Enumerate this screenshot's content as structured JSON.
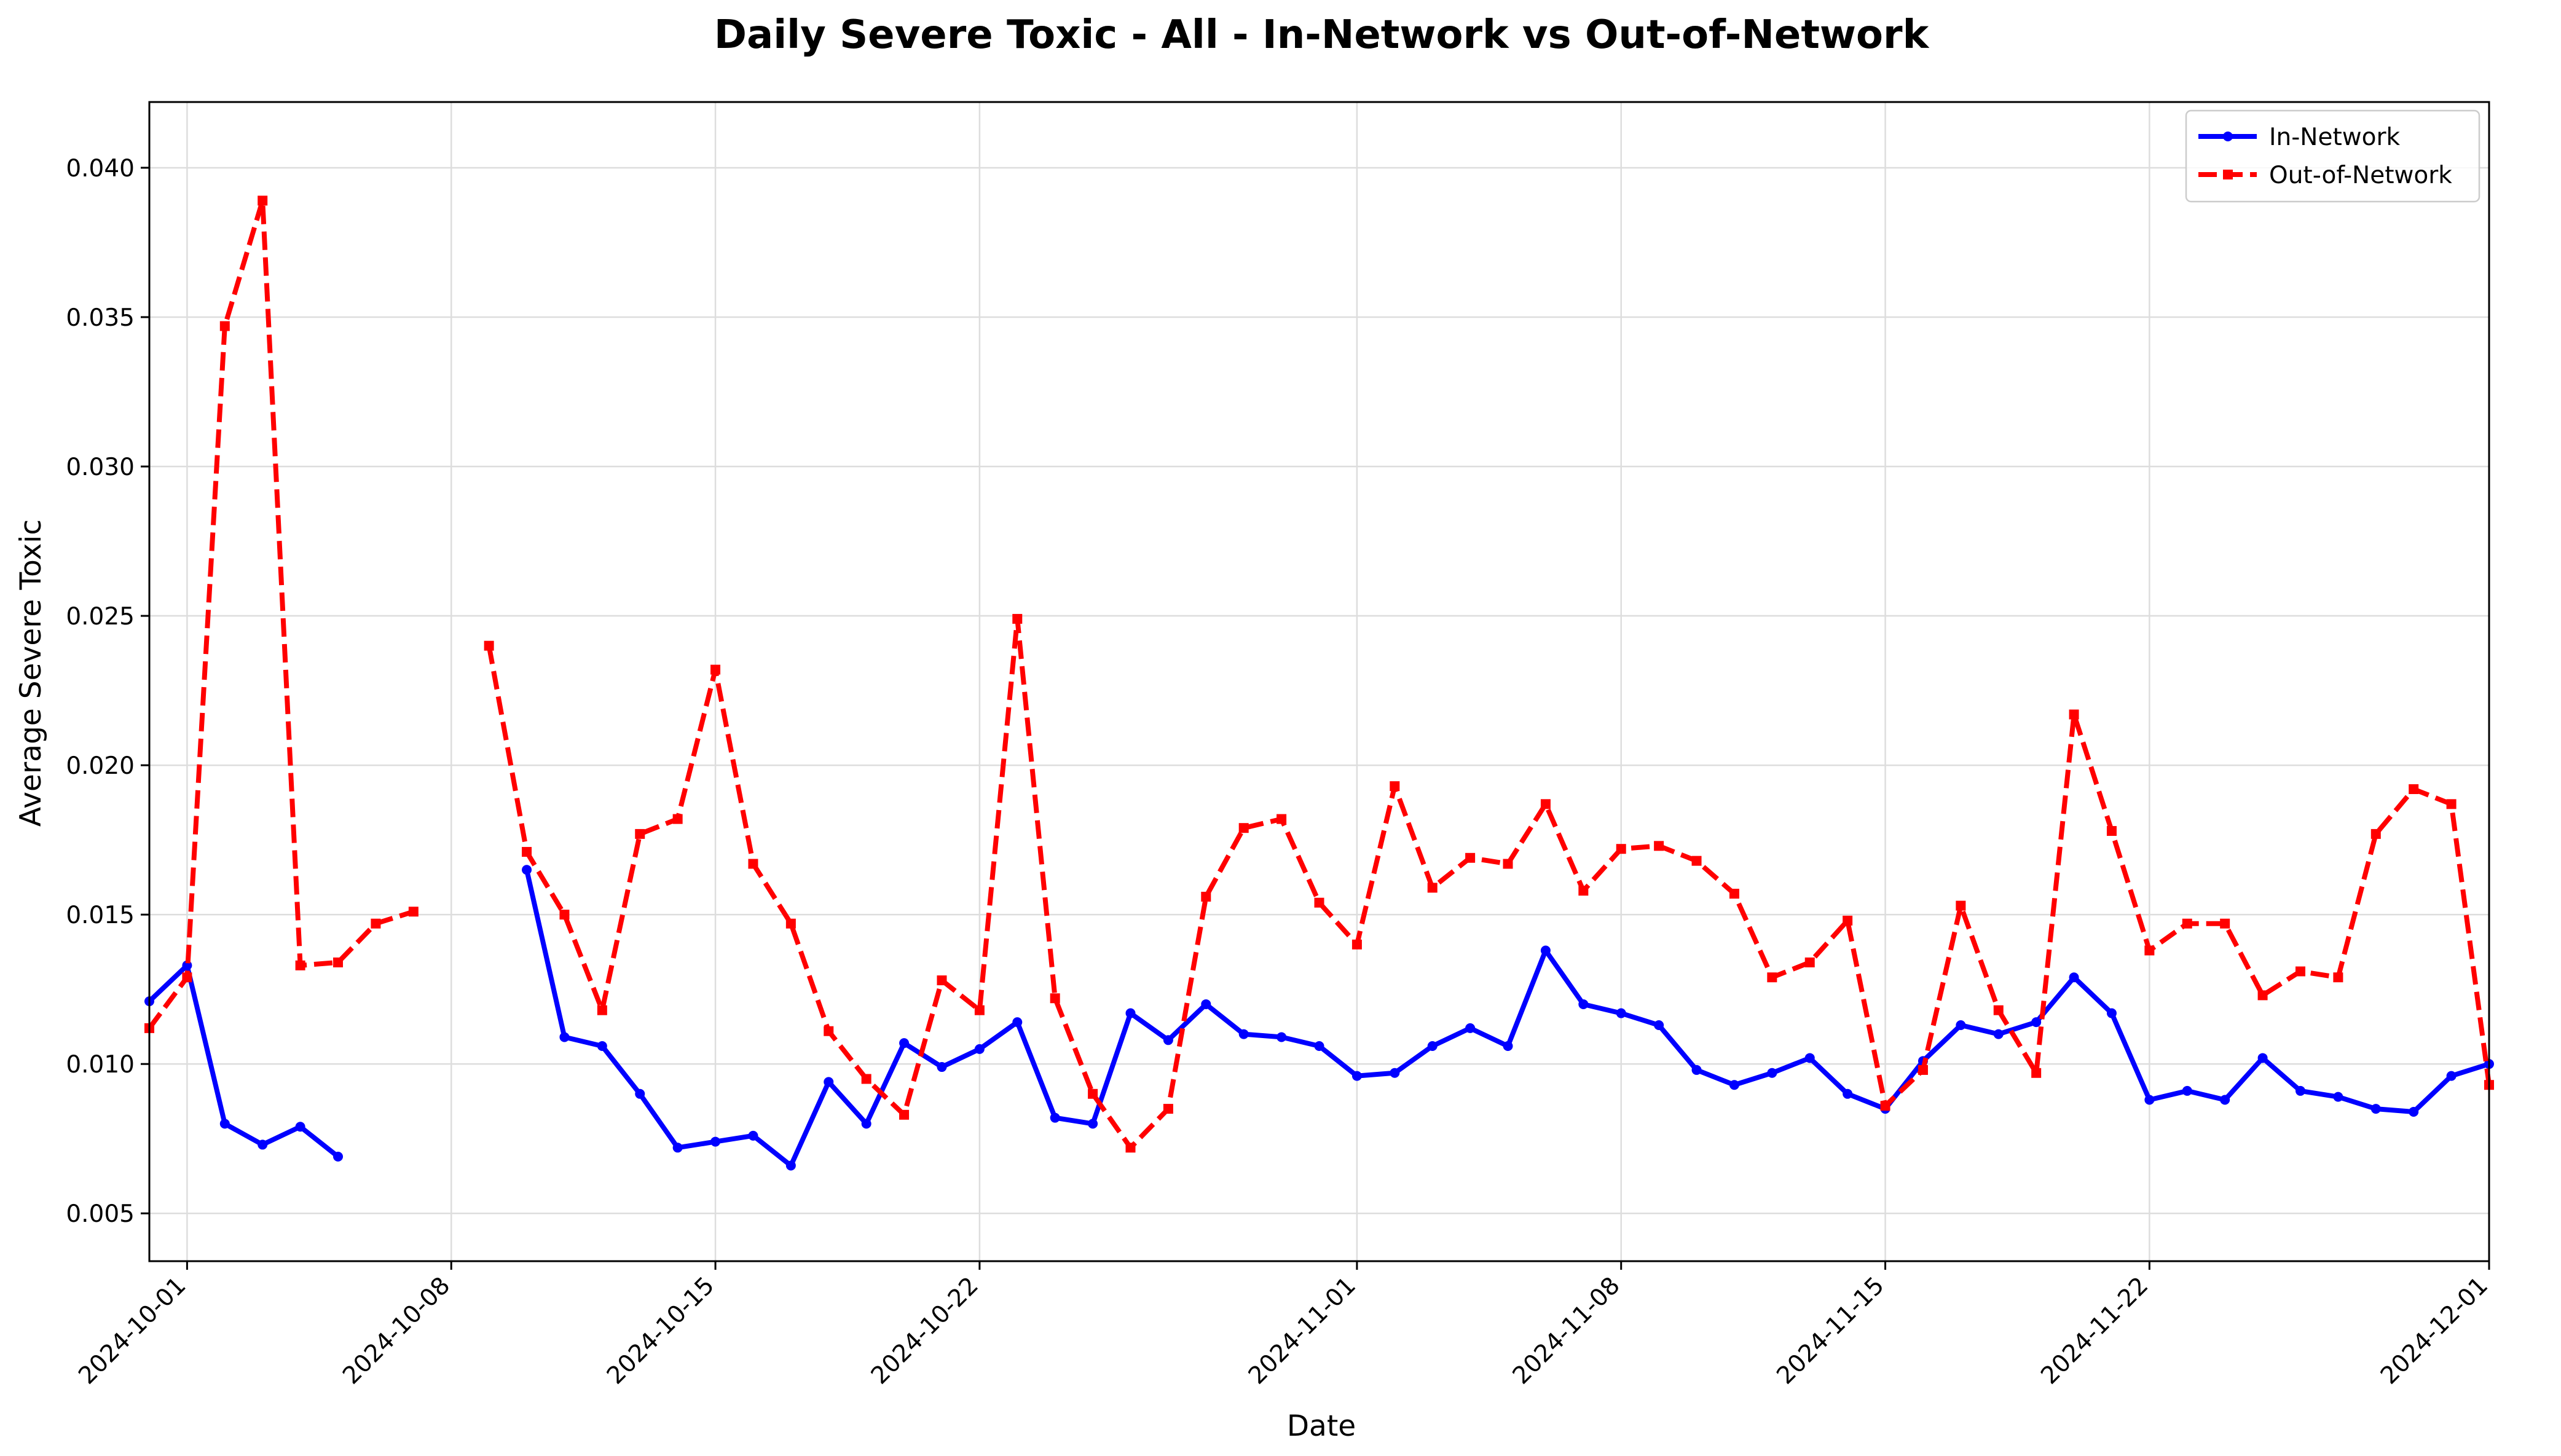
{
  "chart_data": {
    "type": "line",
    "title": "Daily Severe Toxic - All - In-Network vs Out-of-Network",
    "xlabel": "Date",
    "ylabel": "Average Severe Toxic",
    "x_range": [
      "2024-09-30",
      "2024-12-01"
    ],
    "ylim": [
      0.0034,
      0.0422
    ],
    "y_ticks": [
      0.005,
      0.01,
      0.015,
      0.02,
      0.025,
      0.03,
      0.035,
      0.04
    ],
    "y_tick_labels": [
      "0.005",
      "0.010",
      "0.015",
      "0.020",
      "0.025",
      "0.030",
      "0.035",
      "0.040"
    ],
    "x_ticks": [
      "2024-10-01",
      "2024-10-08",
      "2024-10-15",
      "2024-10-22",
      "2024-11-01",
      "2024-11-08",
      "2024-11-15",
      "2024-11-22",
      "2024-12-01"
    ],
    "grid": true,
    "legend_position": "top-right",
    "series": [
      {
        "name": "In-Network",
        "color": "#0000ff",
        "line_style": "solid",
        "marker": "circle",
        "points": [
          [
            "2024-09-30",
            0.0121
          ],
          [
            "2024-10-01",
            0.0133
          ],
          [
            "2024-10-02",
            0.008
          ],
          [
            "2024-10-03",
            0.0073
          ],
          [
            "2024-10-04",
            0.0079
          ],
          [
            "2024-10-05",
            0.0069
          ],
          [
            "2024-10-10",
            0.0165
          ],
          [
            "2024-10-11",
            0.0109
          ],
          [
            "2024-10-12",
            0.0106
          ],
          [
            "2024-10-13",
            0.009
          ],
          [
            "2024-10-14",
            0.0072
          ],
          [
            "2024-10-15",
            0.0074
          ],
          [
            "2024-10-16",
            0.0076
          ],
          [
            "2024-10-17",
            0.0066
          ],
          [
            "2024-10-18",
            0.0094
          ],
          [
            "2024-10-19",
            0.008
          ],
          [
            "2024-10-20",
            0.0107
          ],
          [
            "2024-10-21",
            0.0099
          ],
          [
            "2024-10-22",
            0.0105
          ],
          [
            "2024-10-23",
            0.0114
          ],
          [
            "2024-10-24",
            0.0082
          ],
          [
            "2024-10-25",
            0.008
          ],
          [
            "2024-10-26",
            0.0117
          ],
          [
            "2024-10-27",
            0.0108
          ],
          [
            "2024-10-28",
            0.012
          ],
          [
            "2024-10-29",
            0.011
          ],
          [
            "2024-10-30",
            0.0109
          ],
          [
            "2024-10-31",
            0.0106
          ],
          [
            "2024-11-01",
            0.0096
          ],
          [
            "2024-11-02",
            0.0097
          ],
          [
            "2024-11-03",
            0.0106
          ],
          [
            "2024-11-04",
            0.0112
          ],
          [
            "2024-11-05",
            0.0106
          ],
          [
            "2024-11-06",
            0.0138
          ],
          [
            "2024-11-07",
            0.012
          ],
          [
            "2024-11-08",
            0.0117
          ],
          [
            "2024-11-09",
            0.0113
          ],
          [
            "2024-11-10",
            0.0098
          ],
          [
            "2024-11-11",
            0.0093
          ],
          [
            "2024-11-12",
            0.0097
          ],
          [
            "2024-11-13",
            0.0102
          ],
          [
            "2024-11-14",
            0.009
          ],
          [
            "2024-11-15",
            0.0085
          ],
          [
            "2024-11-16",
            0.0101
          ],
          [
            "2024-11-17",
            0.0113
          ],
          [
            "2024-11-18",
            0.011
          ],
          [
            "2024-11-19",
            0.0114
          ],
          [
            "2024-11-20",
            0.0129
          ],
          [
            "2024-11-21",
            0.0117
          ],
          [
            "2024-11-22",
            0.0088
          ],
          [
            "2024-11-23",
            0.0091
          ],
          [
            "2024-11-24",
            0.0088
          ],
          [
            "2024-11-25",
            0.0102
          ],
          [
            "2024-11-26",
            0.0091
          ],
          [
            "2024-11-27",
            0.0089
          ],
          [
            "2024-11-28",
            0.0085
          ],
          [
            "2024-11-29",
            0.0084
          ],
          [
            "2024-11-30",
            0.0096
          ],
          [
            "2024-12-01",
            0.01
          ]
        ]
      },
      {
        "name": "Out-of-Network",
        "color": "#ff0000",
        "line_style": "dashed",
        "marker": "square",
        "points": [
          [
            "2024-09-30",
            0.0112
          ],
          [
            "2024-10-01",
            0.0129
          ],
          [
            "2024-10-02",
            0.0347
          ],
          [
            "2024-10-03",
            0.0389
          ],
          [
            "2024-10-04",
            0.0133
          ],
          [
            "2024-10-05",
            0.0134
          ],
          [
            "2024-10-06",
            0.0147
          ],
          [
            "2024-10-07",
            0.0151
          ],
          [
            "2024-10-09",
            0.024
          ],
          [
            "2024-10-10",
            0.0171
          ],
          [
            "2024-10-11",
            0.015
          ],
          [
            "2024-10-12",
            0.0118
          ],
          [
            "2024-10-13",
            0.0177
          ],
          [
            "2024-10-14",
            0.0182
          ],
          [
            "2024-10-15",
            0.0232
          ],
          [
            "2024-10-16",
            0.0167
          ],
          [
            "2024-10-17",
            0.0147
          ],
          [
            "2024-10-18",
            0.0111
          ],
          [
            "2024-10-19",
            0.0095
          ],
          [
            "2024-10-20",
            0.0083
          ],
          [
            "2024-10-21",
            0.0128
          ],
          [
            "2024-10-22",
            0.0118
          ],
          [
            "2024-10-23",
            0.0249
          ],
          [
            "2024-10-24",
            0.0122
          ],
          [
            "2024-10-25",
            0.009
          ],
          [
            "2024-10-26",
            0.0072
          ],
          [
            "2024-10-27",
            0.0085
          ],
          [
            "2024-10-28",
            0.0156
          ],
          [
            "2024-10-29",
            0.0179
          ],
          [
            "2024-10-30",
            0.0182
          ],
          [
            "2024-10-31",
            0.0154
          ],
          [
            "2024-11-01",
            0.014
          ],
          [
            "2024-11-02",
            0.0193
          ],
          [
            "2024-11-03",
            0.0159
          ],
          [
            "2024-11-04",
            0.0169
          ],
          [
            "2024-11-05",
            0.0167
          ],
          [
            "2024-11-06",
            0.0187
          ],
          [
            "2024-11-07",
            0.0158
          ],
          [
            "2024-11-08",
            0.0172
          ],
          [
            "2024-11-09",
            0.0173
          ],
          [
            "2024-11-10",
            0.0168
          ],
          [
            "2024-11-11",
            0.0157
          ],
          [
            "2024-11-12",
            0.0129
          ],
          [
            "2024-11-13",
            0.0134
          ],
          [
            "2024-11-14",
            0.0148
          ],
          [
            "2024-11-15",
            0.0086
          ],
          [
            "2024-11-16",
            0.0098
          ],
          [
            "2024-11-17",
            0.0153
          ],
          [
            "2024-11-18",
            0.0118
          ],
          [
            "2024-11-19",
            0.0097
          ],
          [
            "2024-11-20",
            0.0217
          ],
          [
            "2024-11-21",
            0.0178
          ],
          [
            "2024-11-22",
            0.0138
          ],
          [
            "2024-11-23",
            0.0147
          ],
          [
            "2024-11-24",
            0.0147
          ],
          [
            "2024-11-25",
            0.0123
          ],
          [
            "2024-11-26",
            0.0131
          ],
          [
            "2024-11-27",
            0.0129
          ],
          [
            "2024-11-28",
            0.0177
          ],
          [
            "2024-11-29",
            0.0192
          ],
          [
            "2024-11-30",
            0.0187
          ],
          [
            "2024-12-01",
            0.0093
          ]
        ]
      }
    ]
  }
}
